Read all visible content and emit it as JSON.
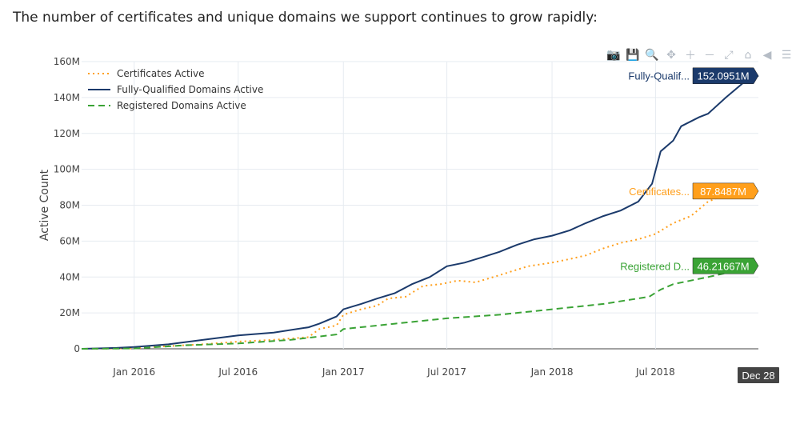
{
  "intro_text": "The number of certificates and unique domains we support continues to grow rapidly:",
  "modebar": [
    {
      "name": "camera-icon",
      "glyph": "📷"
    },
    {
      "name": "save-icon",
      "glyph": "💾"
    },
    {
      "name": "zoom-icon",
      "glyph": "🔍"
    },
    {
      "name": "pan-icon",
      "glyph": "✥"
    },
    {
      "name": "zoom-in-icon",
      "glyph": "＋"
    },
    {
      "name": "zoom-out-icon",
      "glyph": "－"
    },
    {
      "name": "autoscale-icon",
      "glyph": "⤢"
    },
    {
      "name": "home-icon",
      "glyph": "⌂"
    },
    {
      "name": "spike-lines-icon",
      "glyph": "◀"
    },
    {
      "name": "compare-hover-icon",
      "glyph": "☰"
    }
  ],
  "chart_data": {
    "type": "line",
    "xlabel": "",
    "ylabel": "Active Count",
    "ylim": [
      0,
      160000000
    ],
    "yticks": [
      0,
      20000000,
      40000000,
      60000000,
      80000000,
      100000000,
      120000000,
      140000000,
      160000000
    ],
    "ytick_labels": [
      "0",
      "20M",
      "40M",
      "60M",
      "80M",
      "100M",
      "120M",
      "140M",
      "160M"
    ],
    "xlim": [
      "2015-10-01",
      "2018-12-28"
    ],
    "xticks": [
      "2016-01-01",
      "2016-07-01",
      "2017-01-01",
      "2017-07-01",
      "2018-01-01",
      "2018-07-01"
    ],
    "xtick_labels": [
      "Jan 2016",
      "Jul 2016",
      "Jan 2017",
      "Jul 2017",
      "Jan 2018",
      "Jul 2018"
    ],
    "x_hover_label": "Dec 28",
    "grid": true,
    "legend_position": "top-left",
    "series": [
      {
        "name": "Certificates Active",
        "color": "#ff9f1c",
        "dash": "dot",
        "hover_label": "Certificates...",
        "hover_value": "87.8487M",
        "points": [
          [
            "2015-10-01",
            0
          ],
          [
            "2015-12-01",
            200000
          ],
          [
            "2016-01-01",
            300000
          ],
          [
            "2016-03-01",
            1500000
          ],
          [
            "2016-05-01",
            2500000
          ],
          [
            "2016-07-01",
            4000000
          ],
          [
            "2016-09-01",
            5000000
          ],
          [
            "2016-11-01",
            6500000
          ],
          [
            "2016-11-20",
            11000000
          ],
          [
            "2016-12-20",
            13000000
          ],
          [
            "2017-01-01",
            19000000
          ],
          [
            "2017-02-01",
            22000000
          ],
          [
            "2017-03-01",
            24000000
          ],
          [
            "2017-03-20",
            28000000
          ],
          [
            "2017-04-20",
            29000000
          ],
          [
            "2017-05-20",
            35000000
          ],
          [
            "2017-06-20",
            36000000
          ],
          [
            "2017-07-20",
            38000000
          ],
          [
            "2017-08-20",
            37000000
          ],
          [
            "2017-10-01",
            41000000
          ],
          [
            "2017-11-20",
            46000000
          ],
          [
            "2018-01-01",
            48000000
          ],
          [
            "2018-02-01",
            50000000
          ],
          [
            "2018-03-01",
            52000000
          ],
          [
            "2018-04-01",
            56000000
          ],
          [
            "2018-05-01",
            59000000
          ],
          [
            "2018-06-01",
            61000000
          ],
          [
            "2018-07-01",
            64000000
          ],
          [
            "2018-08-01",
            70000000
          ],
          [
            "2018-09-01",
            74000000
          ],
          [
            "2018-10-01",
            82000000
          ],
          [
            "2018-11-01",
            86000000
          ],
          [
            "2018-12-28",
            87848700
          ]
        ]
      },
      {
        "name": "Fully-Qualified Domains Active",
        "color": "#1b3a6b",
        "dash": "solid",
        "hover_label": "Fully-Qualif...",
        "hover_value": "152.0951M",
        "points": [
          [
            "2015-10-01",
            0
          ],
          [
            "2015-12-01",
            500000
          ],
          [
            "2016-01-01",
            1000000
          ],
          [
            "2016-03-01",
            2500000
          ],
          [
            "2016-05-01",
            5000000
          ],
          [
            "2016-07-01",
            7500000
          ],
          [
            "2016-09-01",
            9000000
          ],
          [
            "2016-11-01",
            12000000
          ],
          [
            "2016-11-20",
            14000000
          ],
          [
            "2016-12-20",
            18000000
          ],
          [
            "2017-01-01",
            22000000
          ],
          [
            "2017-02-01",
            25000000
          ],
          [
            "2017-03-01",
            28000000
          ],
          [
            "2017-04-01",
            31000000
          ],
          [
            "2017-05-01",
            36000000
          ],
          [
            "2017-06-01",
            40000000
          ],
          [
            "2017-07-01",
            46000000
          ],
          [
            "2017-08-01",
            48000000
          ],
          [
            "2017-09-01",
            51000000
          ],
          [
            "2017-10-01",
            54000000
          ],
          [
            "2017-11-01",
            58000000
          ],
          [
            "2017-12-01",
            61000000
          ],
          [
            "2018-01-01",
            63000000
          ],
          [
            "2018-02-01",
            66000000
          ],
          [
            "2018-03-01",
            70000000
          ],
          [
            "2018-04-01",
            74000000
          ],
          [
            "2018-05-01",
            77000000
          ],
          [
            "2018-06-01",
            82000000
          ],
          [
            "2018-06-25",
            92000000
          ],
          [
            "2018-07-10",
            110000000
          ],
          [
            "2018-08-01",
            116000000
          ],
          [
            "2018-08-15",
            124000000
          ],
          [
            "2018-09-15",
            129000000
          ],
          [
            "2018-10-01",
            131000000
          ],
          [
            "2018-11-01",
            140000000
          ],
          [
            "2018-12-01",
            148000000
          ],
          [
            "2018-12-28",
            152095100
          ]
        ]
      },
      {
        "name": "Registered Domains Active",
        "color": "#3aa335",
        "dash": "dash",
        "hover_label": "Registered D...",
        "hover_value": "46.21667M",
        "points": [
          [
            "2015-10-01",
            0
          ],
          [
            "2016-01-01",
            200000
          ],
          [
            "2016-04-01",
            2000000
          ],
          [
            "2016-07-01",
            3000000
          ],
          [
            "2016-10-01",
            5000000
          ],
          [
            "2016-12-20",
            8000000
          ],
          [
            "2017-01-01",
            11000000
          ],
          [
            "2017-04-01",
            14000000
          ],
          [
            "2017-07-01",
            17000000
          ],
          [
            "2017-10-01",
            19000000
          ],
          [
            "2018-01-01",
            22000000
          ],
          [
            "2018-04-01",
            25000000
          ],
          [
            "2018-06-20",
            29000000
          ],
          [
            "2018-07-10",
            33000000
          ],
          [
            "2018-08-01",
            36000000
          ],
          [
            "2018-10-01",
            40000000
          ],
          [
            "2018-12-28",
            46216670
          ]
        ]
      }
    ]
  }
}
